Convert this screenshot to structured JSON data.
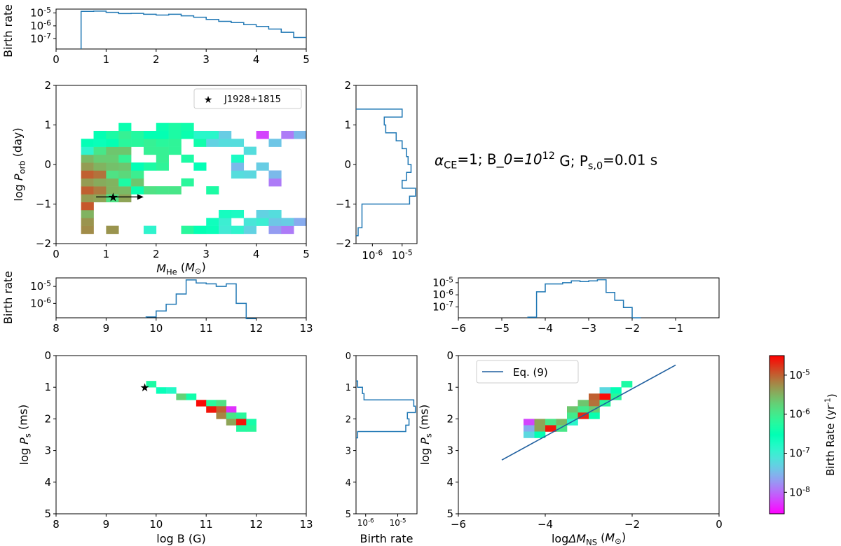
{
  "chart_data": {
    "type": "heatmap",
    "annotation": "$\\alpha_{\\rm CE}=1$; B$_0=10^{12}$ G; P$_{\\rm s,0}$=0.01 s",
    "colorbar": {
      "label": "Birth Rate (yr$^{-1}$)",
      "ticks": [
        "10$^{-8}$",
        "10$^{-7}$",
        "10$^{-6}$",
        "10$^{-5}$"
      ],
      "log_range": [
        -8.55,
        -4.5
      ],
      "colormap": "rainbow"
    },
    "panels": {
      "top_mhe_hist": {
        "ylabel": "Birth rate",
        "xlim": [
          0,
          5
        ],
        "xticks": [
          "0",
          "1",
          "2",
          "3",
          "4",
          "5"
        ],
        "yticks": [
          "10$^{-5}$",
          "10$^{-6}$",
          "10$^{-7}$"
        ],
        "ylog_range": [
          -7.8,
          -4.7
        ],
        "bin_width": 0.25,
        "bin_starts": [
          0.5,
          0.75,
          1.0,
          1.25,
          1.5,
          1.75,
          2.0,
          2.25,
          2.5,
          2.75,
          3.0,
          3.25,
          3.5,
          3.75,
          4.0,
          4.25,
          4.5,
          4.75
        ],
        "log_values": [
          -4.88,
          -4.86,
          -4.95,
          -5.05,
          -5.03,
          -5.1,
          -5.16,
          -5.1,
          -5.22,
          -5.33,
          -5.5,
          -5.65,
          -5.75,
          -5.9,
          -6.05,
          -6.25,
          -6.5,
          -6.9
        ]
      },
      "main_porb_mhe": {
        "xlabel": "$M_{\\rm He}$ ($M_{\\odot}$)",
        "ylabel": "log $P_{\\rm orb}$ (day)",
        "xlim": [
          0,
          5
        ],
        "ylim": [
          -2,
          2
        ],
        "xticks": [
          "0",
          "1",
          "2",
          "3",
          "4",
          "5"
        ],
        "yticks": [
          "−2",
          "−1",
          "0",
          "1",
          "2"
        ],
        "legend": "J1928+1815",
        "star": {
          "x": 1.14,
          "y": -0.82
        },
        "arrow": {
          "from": 0.8,
          "to": 1.75,
          "y": -0.82
        },
        "cells_x0": 0.5,
        "cells_y0": -1.75,
        "cell_w": 0.25,
        "cell_h": 0.2,
        "cells": [
          [
            0,
            0,
            -5.25
          ],
          [
            0,
            1,
            -5.3
          ],
          [
            0,
            2,
            -5.5
          ],
          [
            0,
            3,
            -4.95
          ],
          [
            0,
            4,
            -5.35
          ],
          [
            0,
            5,
            -5.0
          ],
          [
            0,
            6,
            -5.35
          ],
          [
            0,
            7,
            -5.0
          ],
          [
            0,
            8,
            -5.35
          ],
          [
            0,
            9,
            -5.55
          ],
          [
            0,
            10,
            -6.9
          ],
          [
            0,
            11,
            -6.55
          ],
          [
            1,
            4,
            -5.4
          ],
          [
            1,
            5,
            -5.15
          ],
          [
            1,
            6,
            -5.45
          ],
          [
            1,
            7,
            -5.1
          ],
          [
            1,
            8,
            -5.5
          ],
          [
            1,
            9,
            -5.7
          ],
          [
            1,
            10,
            -5.95
          ],
          [
            1,
            11,
            -6.6
          ],
          [
            1,
            12,
            -6.5
          ],
          [
            2,
            0,
            -5.3
          ],
          [
            2,
            4,
            -5.9
          ],
          [
            2,
            5,
            -5.5
          ],
          [
            2,
            6,
            -5.5
          ],
          [
            2,
            7,
            -5.9
          ],
          [
            2,
            8,
            -5.6
          ],
          [
            2,
            9,
            -5.7
          ],
          [
            2,
            10,
            -5.65
          ],
          [
            2,
            11,
            -6.5
          ],
          [
            2,
            12,
            -6.3
          ],
          [
            3,
            4,
            -5.4
          ],
          [
            3,
            5,
            -5.55
          ],
          [
            3,
            6,
            -6.3
          ],
          [
            3,
            7,
            -5.8
          ],
          [
            3,
            8,
            -5.65
          ],
          [
            3,
            9,
            -6.1
          ],
          [
            3,
            10,
            -5.65
          ],
          [
            3,
            11,
            -6.2
          ],
          [
            3,
            12,
            -6.1
          ],
          [
            3,
            13,
            -6.45
          ],
          [
            4,
            5,
            -6.45
          ],
          [
            4,
            6,
            -5.65
          ],
          [
            4,
            7,
            -6.05
          ],
          [
            4,
            8,
            -6.55
          ],
          [
            4,
            11,
            -6.2
          ],
          [
            4,
            12,
            -6.25
          ],
          [
            5,
            0,
            -6.9
          ],
          [
            5,
            5,
            -5.9
          ],
          [
            5,
            8,
            -6.3
          ],
          [
            5,
            10,
            -6.1
          ],
          [
            5,
            11,
            -6.1
          ],
          [
            5,
            12,
            -6.5
          ],
          [
            6,
            5,
            -5.95
          ],
          [
            6,
            8,
            -6.15
          ],
          [
            6,
            9,
            -6.1
          ],
          [
            6,
            10,
            -6.1
          ],
          [
            6,
            11,
            -6.2
          ],
          [
            6,
            12,
            -6.5
          ],
          [
            6,
            13,
            -6.45
          ],
          [
            7,
            5,
            -5.95
          ],
          [
            7,
            10,
            -6.15
          ],
          [
            7,
            11,
            -6.15
          ],
          [
            7,
            12,
            -6.3
          ],
          [
            7,
            13,
            -6.3
          ],
          [
            8,
            0,
            -6.2
          ],
          [
            8,
            6,
            -6.2
          ],
          [
            8,
            9,
            -6.3
          ],
          [
            8,
            12,
            -6.45
          ],
          [
            8,
            13,
            -6.4
          ],
          [
            9,
            0,
            -6.5
          ],
          [
            9,
            8,
            -6.55
          ],
          [
            9,
            11,
            -6.4
          ],
          [
            9,
            12,
            -6.85
          ],
          [
            10,
            0,
            -6.6
          ],
          [
            10,
            1,
            -6.65
          ],
          [
            10,
            5,
            -6.3
          ],
          [
            10,
            11,
            -7.3
          ],
          [
            10,
            12,
            -6.85
          ],
          [
            11,
            0,
            -7.05
          ],
          [
            11,
            1,
            -7.0
          ],
          [
            11,
            2,
            -6.7
          ],
          [
            11,
            11,
            -7.2
          ],
          [
            11,
            12,
            -7.35
          ],
          [
            12,
            0,
            -6.9
          ],
          [
            12,
            2,
            -6.75
          ],
          [
            12,
            7,
            -7.2
          ],
          [
            12,
            8,
            -7.5
          ],
          [
            12,
            9,
            -6.75
          ],
          [
            12,
            11,
            -7.2
          ],
          [
            13,
            0,
            -7.3
          ],
          [
            13,
            1,
            -7.1
          ],
          [
            13,
            7,
            -7.25
          ],
          [
            13,
            10,
            -7.2
          ],
          [
            14,
            1,
            -7.0
          ],
          [
            14,
            2,
            -7.3
          ],
          [
            14,
            8,
            -7.35
          ],
          [
            14,
            12,
            -8.2
          ],
          [
            15,
            0,
            -7.7
          ],
          [
            15,
            1,
            -7.4
          ],
          [
            15,
            2,
            -7.2
          ],
          [
            15,
            6,
            -7.9
          ],
          [
            15,
            7,
            -7.5
          ],
          [
            15,
            11,
            -7.4
          ],
          [
            16,
            0,
            -7.9
          ],
          [
            16,
            1,
            -7.35
          ],
          [
            16,
            12,
            -7.9
          ],
          [
            17,
            1,
            -7.6
          ],
          [
            17,
            12,
            -7.5
          ]
        ]
      },
      "right_porb_hist": {
        "ylim": [
          -2,
          2
        ],
        "yticks": [
          "−2",
          "−1",
          "0",
          "1",
          "2"
        ],
        "xticks": [
          "10$^{-6}$",
          "10$^{-5}$"
        ],
        "xlog_range": [
          -6.55,
          -4.5
        ],
        "bin_edges": [
          -1.8,
          -1.6,
          -1.4,
          -1.2,
          -1.0,
          -0.8,
          -0.6,
          -0.4,
          -0.2,
          0.0,
          0.2,
          0.4,
          0.6,
          0.8,
          1.0,
          1.2,
          1.4
        ],
        "log_values": [
          -6.48,
          -6.35,
          -6.35,
          -6.35,
          -4.75,
          -4.55,
          -5.0,
          -4.85,
          -4.7,
          -4.8,
          -4.85,
          -5.0,
          -5.2,
          -5.55,
          -5.6,
          -5.0
        ]
      },
      "b_hist": {
        "ylabel": "Birth rate",
        "xlim": [
          8,
          13
        ],
        "xticks": [
          "8",
          "9",
          "10",
          "11",
          "12",
          "13"
        ],
        "yticks": [
          "10$^{-5}$",
          "10$^{-6}$"
        ],
        "ylog_range": [
          -6.85,
          -4.5
        ],
        "bin_edges": [
          9.8,
          10.0,
          10.2,
          10.4,
          10.6,
          10.8,
          11.0,
          11.2,
          11.4,
          11.6,
          11.8,
          12.0
        ],
        "log_values": [
          -6.8,
          -6.45,
          -6.05,
          -5.45,
          -4.62,
          -4.8,
          -4.85,
          -5.0,
          -4.85,
          -6.0,
          -6.9
        ]
      },
      "dm_hist": {
        "xlim": [
          -6,
          0
        ],
        "xticks": [
          "−6",
          "−5",
          "−4",
          "−3",
          "−2",
          "−1"
        ],
        "yticks": [
          "10$^{-5}$",
          "10$^{-6}$",
          "10$^{-7}$"
        ],
        "ylog_range": [
          -7.9,
          -4.6
        ],
        "bin_edges": [
          -4.4,
          -4.2,
          -4.0,
          -3.8,
          -3.6,
          -3.4,
          -3.2,
          -3.0,
          -2.8,
          -2.6,
          -2.4,
          -2.2,
          -2.0,
          -1.8
        ],
        "log_values": [
          -7.85,
          -5.75,
          -5.1,
          -5.1,
          -5.0,
          -4.85,
          -4.9,
          -4.85,
          -4.75,
          -5.8,
          -6.45,
          -7.05,
          -7.9
        ]
      },
      "ps_b": {
        "xlabel": "log $B$ (G)",
        "ylabel": "log $P_{\\rm s}$ (ms)",
        "xlim": [
          8,
          13
        ],
        "ylim_inverted": [
          0,
          5
        ],
        "xticks": [
          "8",
          "9",
          "10",
          "11",
          "12",
          "13"
        ],
        "yticks": [
          "0",
          "1",
          "2",
          "3",
          "4",
          "5"
        ],
        "star": {
          "x": 9.8,
          "y": 1.0
        },
        "cell_w": 0.2,
        "cell_h": 0.2,
        "cells": [
          [
            9.8,
            0.8,
            -6.3
          ],
          [
            10.0,
            1.0,
            -6.6
          ],
          [
            10.2,
            1.0,
            -6.8
          ],
          [
            10.4,
            1.2,
            -5.75
          ],
          [
            10.6,
            1.2,
            -6.4
          ],
          [
            10.8,
            1.4,
            -4.55
          ],
          [
            11.0,
            1.4,
            -6.2
          ],
          [
            11.0,
            1.6,
            -4.6
          ],
          [
            11.2,
            1.4,
            -5.9
          ],
          [
            11.2,
            1.6,
            -5.0
          ],
          [
            11.4,
            1.6,
            -8.3
          ],
          [
            11.2,
            1.8,
            -5.2
          ],
          [
            11.4,
            1.8,
            -5.95
          ],
          [
            11.6,
            1.8,
            -6.2
          ],
          [
            11.4,
            2.0,
            -5.4
          ],
          [
            11.6,
            2.0,
            -4.6
          ],
          [
            11.8,
            2.0,
            -6.35
          ],
          [
            11.6,
            2.2,
            -6.25
          ],
          [
            11.8,
            2.2,
            -6.2
          ]
        ]
      },
      "ps_hist": {
        "xlabel": "Birth rate",
        "ylim_inverted": [
          0,
          5
        ],
        "yticks": [
          "0",
          "1",
          "2",
          "3",
          "4",
          "5"
        ],
        "xticks": [
          "10$^{-6}$",
          "10$^{-5}$"
        ],
        "xlog_range": [
          -6.3,
          -4.4
        ],
        "bin_edges": [
          0.8,
          1.0,
          1.2,
          1.4,
          1.6,
          1.8,
          2.0,
          2.2,
          2.4,
          2.6
        ],
        "log_values": [
          -6.25,
          -6.1,
          -6.05,
          -4.5,
          -4.45,
          -4.7,
          -4.65,
          -4.75,
          -6.25
        ]
      },
      "ps_dm": {
        "xlabel": "log$\\Delta M_{\\rm NS}$ ($M_{\\odot}$)",
        "ylabel": "log $P_{\\rm s}$ (ms)",
        "xlim": [
          -6,
          0
        ],
        "ylim_inverted": [
          0,
          5
        ],
        "xticks": [
          "−6",
          "−4",
          "−2",
          "0"
        ],
        "yticks": [
          "0",
          "1",
          "2",
          "3",
          "4",
          "5"
        ],
        "legend": "Eq. (9)",
        "line": {
          "x": [
            -5.0,
            -1.0
          ],
          "y": [
            3.3,
            0.3
          ],
          "color": "#1f5f9f"
        },
        "cell_w": 0.25,
        "cell_h": 0.2,
        "cells": [
          [
            -2.25,
            0.8,
            -6.3
          ],
          [
            -2.5,
            1.0,
            -6.5
          ],
          [
            -2.75,
            1.0,
            -7.25
          ],
          [
            -2.5,
            1.2,
            -6.2
          ],
          [
            -3.0,
            1.2,
            -5.0
          ],
          [
            -2.75,
            1.2,
            -4.55
          ],
          [
            -3.25,
            1.4,
            -5.65
          ],
          [
            -3.0,
            1.4,
            -5.1
          ],
          [
            -2.75,
            1.4,
            -6.2
          ],
          [
            -3.5,
            1.6,
            -5.65
          ],
          [
            -3.25,
            1.6,
            -6.0
          ],
          [
            -3.0,
            1.6,
            -5.7
          ],
          [
            -3.5,
            1.8,
            -6.0
          ],
          [
            -3.25,
            1.8,
            -4.7
          ],
          [
            -3.0,
            1.8,
            -6.45
          ],
          [
            -4.5,
            2.0,
            -8.2
          ],
          [
            -4.25,
            2.0,
            -5.4
          ],
          [
            -4.0,
            2.0,
            -5.95
          ],
          [
            -3.75,
            2.0,
            -5.55
          ],
          [
            -3.5,
            2.0,
            -6.85
          ],
          [
            -4.5,
            2.2,
            -7.6
          ],
          [
            -4.25,
            2.2,
            -5.4
          ],
          [
            -4.0,
            2.2,
            -4.6
          ],
          [
            -3.75,
            2.2,
            -5.95
          ],
          [
            -4.5,
            2.4,
            -7.25
          ],
          [
            -4.25,
            2.4,
            -6.5
          ]
        ]
      }
    }
  }
}
